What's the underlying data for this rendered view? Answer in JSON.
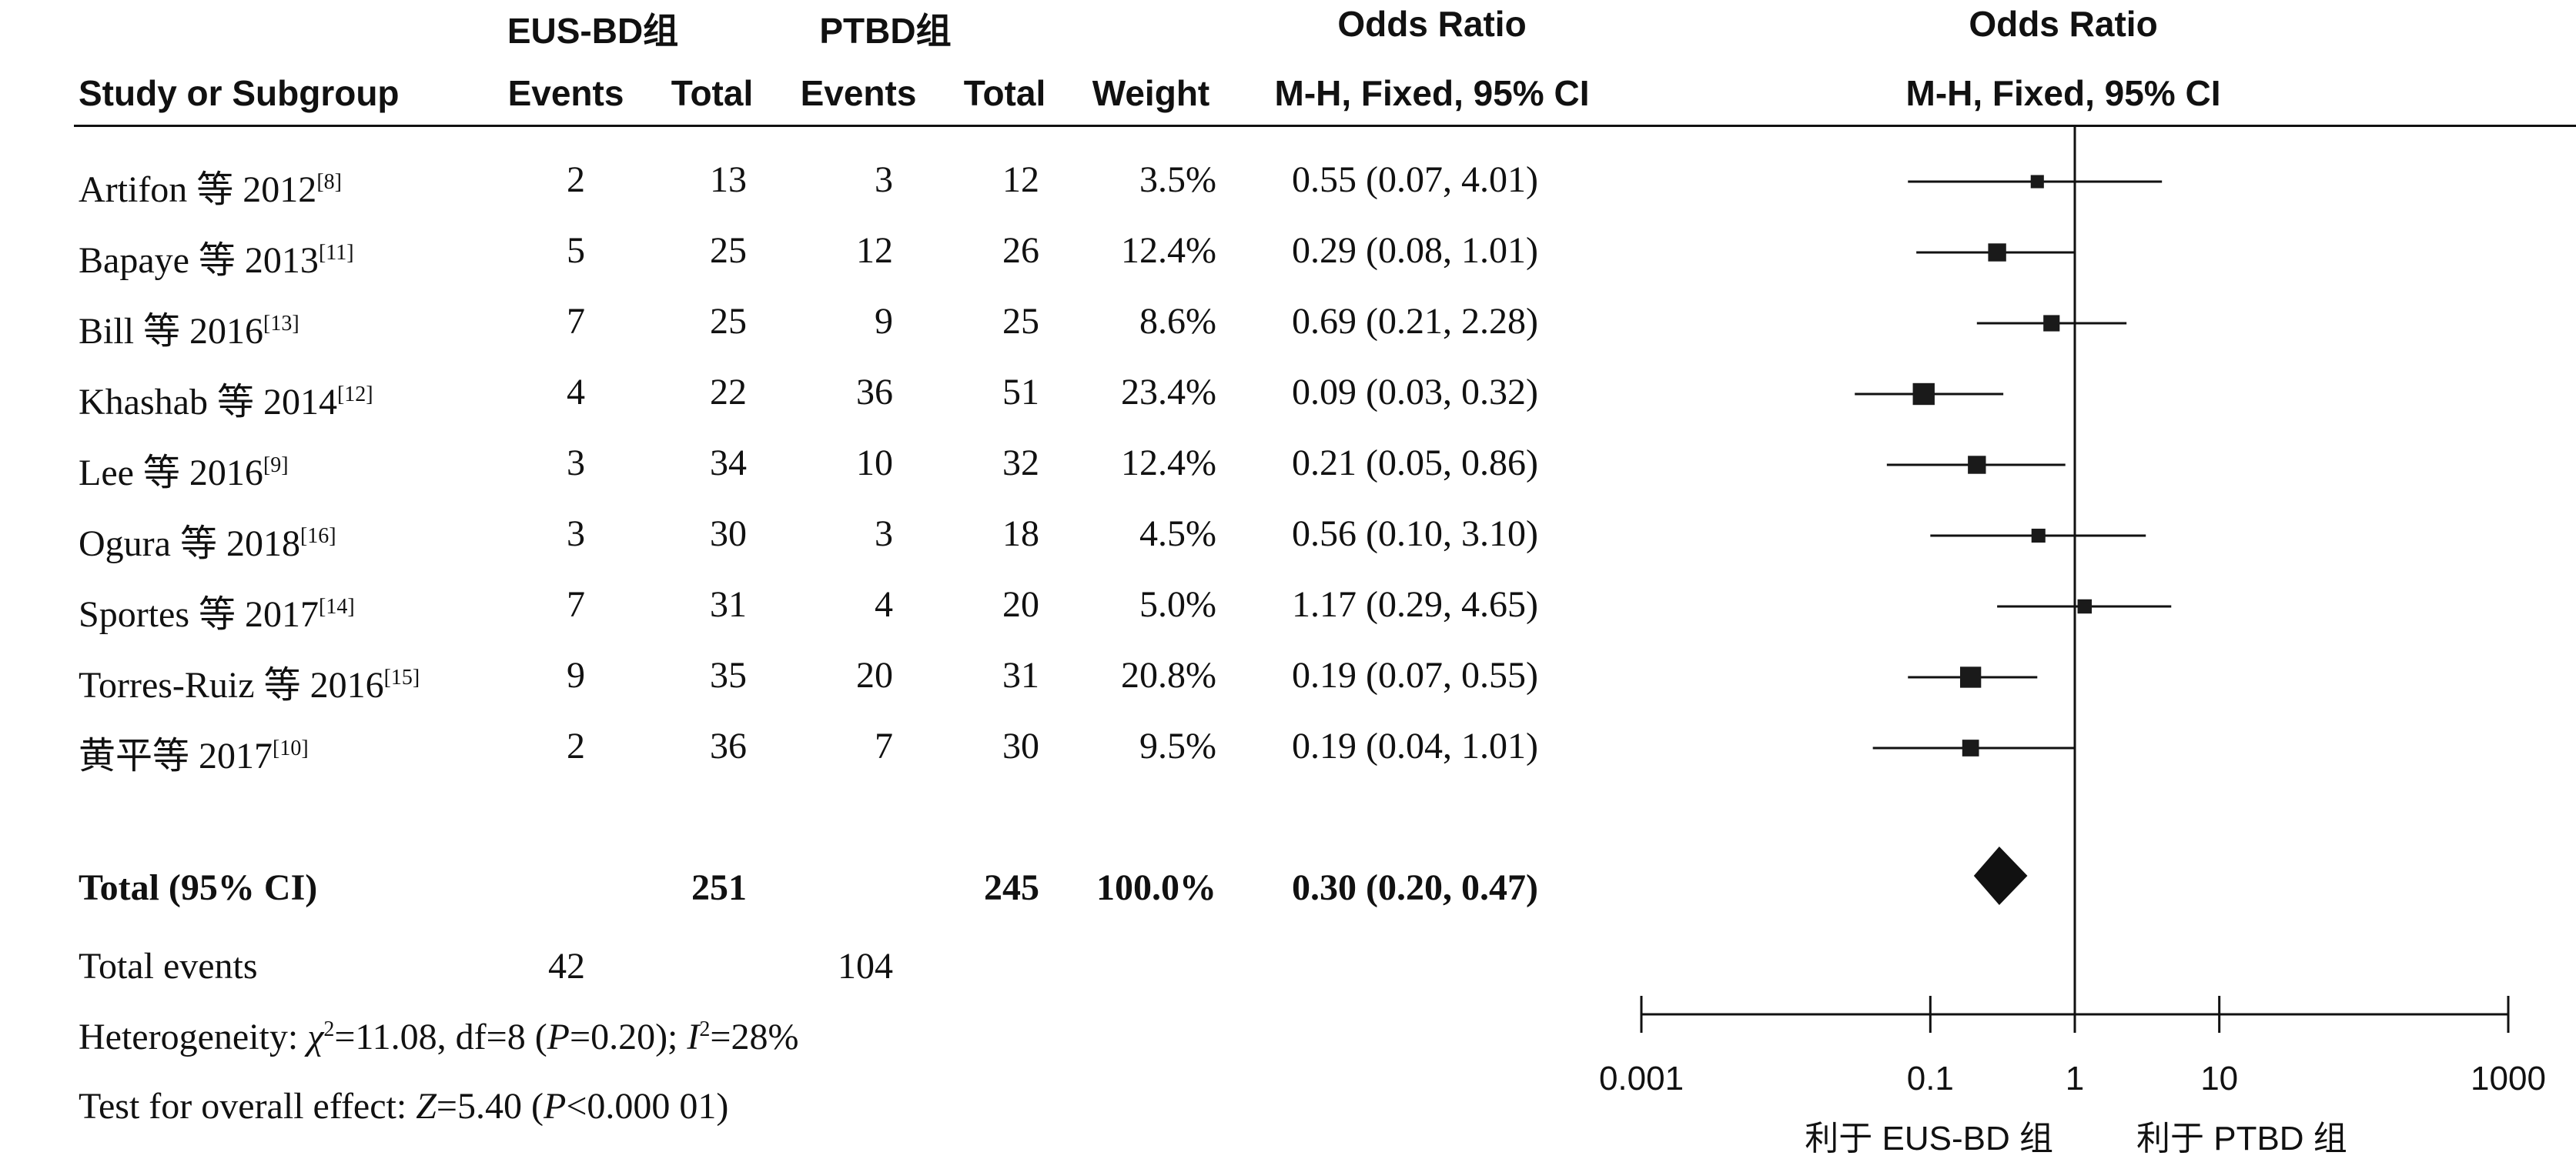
{
  "header": {
    "group1": "EUS-BD组",
    "group2": "PTBD组",
    "or_title": "Odds Ratio",
    "or_title_plot": "Odds Ratio",
    "col_study": "Study or Subgroup",
    "col_events1": "Events",
    "col_total1": "Total",
    "col_events2": "Events",
    "col_total2": "Total",
    "col_weight": "Weight",
    "col_method": "M-H, Fixed, 95% CI",
    "col_method_plot": "M-H, Fixed, 95% CI"
  },
  "studies": [
    {
      "name": "Artifon 等 2012",
      "ref": "[8]",
      "events1": "2",
      "total1": "13",
      "events2": "3",
      "total2": "12",
      "weight": "3.5%",
      "ci": "0.55 (0.07, 4.01)"
    },
    {
      "name": "Bapaye 等 2013",
      "ref": "[11]",
      "events1": "5",
      "total1": "25",
      "events2": "12",
      "total2": "26",
      "weight": "12.4%",
      "ci": "0.29 (0.08, 1.01)"
    },
    {
      "name": "Bill 等 2016",
      "ref": "[13]",
      "events1": "7",
      "total1": "25",
      "events2": "9",
      "total2": "25",
      "weight": "8.6%",
      "ci": "0.69 (0.21, 2.28)"
    },
    {
      "name": "Khashab 等 2014",
      "ref": "[12]",
      "events1": "4",
      "total1": "22",
      "events2": "36",
      "total2": "51",
      "weight": "23.4%",
      "ci": "0.09 (0.03, 0.32)"
    },
    {
      "name": "Lee 等 2016",
      "ref": "[9]",
      "events1": "3",
      "total1": "34",
      "events2": "10",
      "total2": "32",
      "weight": "12.4%",
      "ci": "0.21 (0.05, 0.86)"
    },
    {
      "name": "Ogura 等 2018",
      "ref": "[16]",
      "events1": "3",
      "total1": "30",
      "events2": "3",
      "total2": "18",
      "weight": "4.5%",
      "ci": "0.56 (0.10, 3.10)"
    },
    {
      "name": "Sportes 等 2017",
      "ref": "[14]",
      "events1": "7",
      "total1": "31",
      "events2": "4",
      "total2": "20",
      "weight": "5.0%",
      "ci": "1.17 (0.29, 4.65)"
    },
    {
      "name": "Torres-Ruiz 等 2016",
      "ref": "[15]",
      "events1": "9",
      "total1": "35",
      "events2": "20",
      "total2": "31",
      "weight": "20.8%",
      "ci": "0.19 (0.07, 0.55)"
    },
    {
      "name": "黄平等 2017",
      "ref": "[10]",
      "events1": "2",
      "total1": "36",
      "events2": "7",
      "total2": "30",
      "weight": "9.5%",
      "ci": "0.19 (0.04, 1.01)"
    }
  ],
  "total": {
    "label": "Total (95% CI)",
    "total1": "251",
    "total2": "245",
    "weight": "100.0%",
    "ci": "0.30 (0.20, 0.47)"
  },
  "total_events": {
    "label": "Total events",
    "events1": "42",
    "events2": "104"
  },
  "heterogeneity": {
    "label": "Heterogeneity: ",
    "chi": "χ",
    "chi_sup": "2",
    "chi_val": "=11.08, df=8 (",
    "p": "P",
    "p_val": "=0.20); ",
    "i": "I",
    "i_sup": "2",
    "i_val": "=28%"
  },
  "overall_effect": {
    "label": "Test for overall effect: ",
    "z": "Z",
    "z_val": "=5.40 (",
    "p": "P",
    "p_val": "<0.000 01)"
  },
  "chart_data": {
    "type": "forest",
    "scale": "log",
    "xlim": [
      0.001,
      1000
    ],
    "ticks": [
      {
        "value": 0.001,
        "label": "0.001"
      },
      {
        "value": 0.1,
        "label": "0.1"
      },
      {
        "value": 1,
        "label": "1"
      },
      {
        "value": 10,
        "label": "10"
      },
      {
        "value": 1000,
        "label": "1000"
      }
    ],
    "points": [
      {
        "or": 0.55,
        "lo": 0.07,
        "hi": 4.01,
        "weight": 3.5
      },
      {
        "or": 0.29,
        "lo": 0.08,
        "hi": 1.01,
        "weight": 12.4
      },
      {
        "or": 0.69,
        "lo": 0.21,
        "hi": 2.28,
        "weight": 8.6
      },
      {
        "or": 0.09,
        "lo": 0.03,
        "hi": 0.32,
        "weight": 23.4
      },
      {
        "or": 0.21,
        "lo": 0.05,
        "hi": 0.86,
        "weight": 12.4
      },
      {
        "or": 0.56,
        "lo": 0.1,
        "hi": 3.1,
        "weight": 4.5
      },
      {
        "or": 1.17,
        "lo": 0.29,
        "hi": 4.65,
        "weight": 5.0
      },
      {
        "or": 0.19,
        "lo": 0.07,
        "hi": 0.55,
        "weight": 20.8
      },
      {
        "or": 0.19,
        "lo": 0.04,
        "hi": 1.01,
        "weight": 9.5
      }
    ],
    "pooled": {
      "or": 0.3,
      "lo": 0.2,
      "hi": 0.47
    },
    "favours_left": "利于 EUS-BD 组",
    "favours_right": "利于 PTBD 组"
  }
}
